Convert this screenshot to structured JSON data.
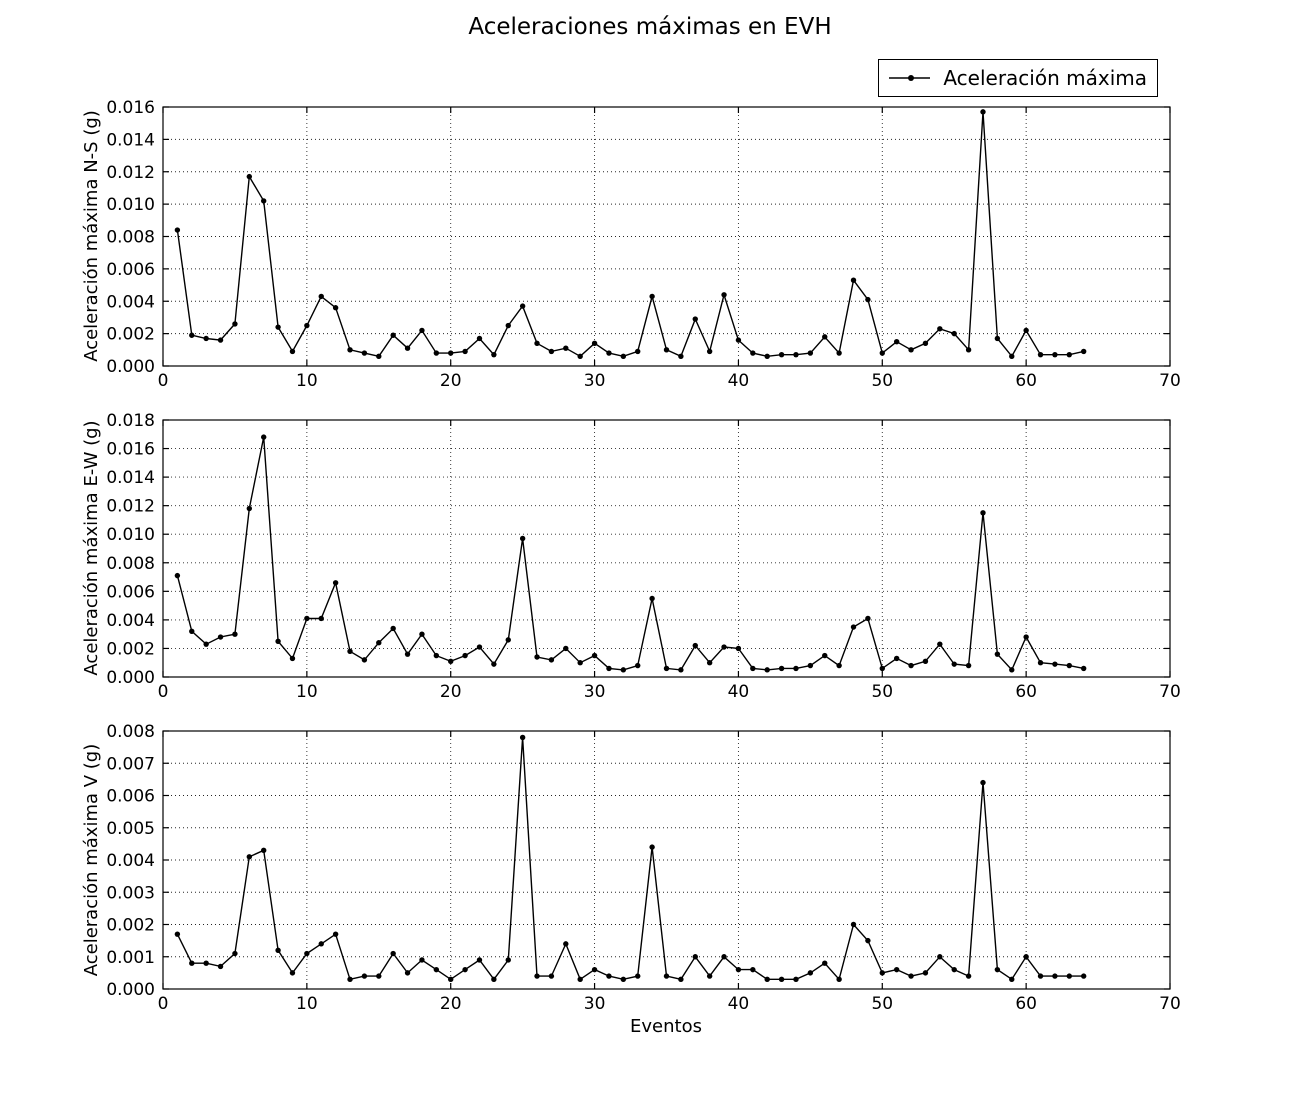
{
  "title": "Aceleraciones máximas en EVH",
  "xlabel": "Eventos",
  "legend": {
    "label": "Aceleración máxima",
    "position": "upper right",
    "marker": "point",
    "line_color": "#000000"
  },
  "colors": {
    "line": "#000000",
    "marker": "#000000",
    "background": "#ffffff",
    "grid": "#000000",
    "frame": "#000000"
  },
  "chart_data": [
    {
      "type": "line",
      "name": "N-S",
      "ylabel": "Aceleración máxima N-S (g)",
      "xlim": [
        0,
        70
      ],
      "ylim": [
        0,
        0.016
      ],
      "xticks": [
        0,
        10,
        20,
        30,
        40,
        50,
        60,
        70
      ],
      "ytick_step": 0.002,
      "ytick_decimals": 3,
      "grid": true,
      "x": [
        1,
        2,
        3,
        4,
        5,
        6,
        7,
        8,
        9,
        10,
        11,
        12,
        13,
        14,
        15,
        16,
        17,
        18,
        19,
        20,
        21,
        22,
        23,
        24,
        25,
        26,
        27,
        28,
        29,
        30,
        31,
        32,
        33,
        34,
        35,
        36,
        37,
        38,
        39,
        40,
        41,
        42,
        43,
        44,
        45,
        46,
        47,
        48,
        49,
        50,
        51,
        52,
        53,
        54,
        55,
        56,
        57,
        58,
        59,
        60,
        61,
        62,
        63,
        64
      ],
      "values": [
        0.0084,
        0.0019,
        0.0017,
        0.0016,
        0.0026,
        0.0117,
        0.0102,
        0.0024,
        0.0009,
        0.0025,
        0.0043,
        0.0036,
        0.001,
        0.0008,
        0.0006,
        0.0019,
        0.0011,
        0.0022,
        0.0008,
        0.0008,
        0.0009,
        0.0017,
        0.0007,
        0.0025,
        0.0037,
        0.0014,
        0.0009,
        0.0011,
        0.0006,
        0.0014,
        0.0008,
        0.0006,
        0.0009,
        0.0043,
        0.001,
        0.0006,
        0.0029,
        0.0009,
        0.0044,
        0.0016,
        0.0008,
        0.0006,
        0.0007,
        0.0007,
        0.0008,
        0.0018,
        0.0008,
        0.0053,
        0.0041,
        0.0008,
        0.0015,
        0.001,
        0.0014,
        0.0023,
        0.002,
        0.001,
        0.0157,
        0.0017,
        0.0006,
        0.0022,
        0.0007,
        0.0007,
        0.0007,
        0.0009
      ]
    },
    {
      "type": "line",
      "name": "E-W",
      "ylabel": "Aceleración máxima E-W (g)",
      "xlim": [
        0,
        70
      ],
      "ylim": [
        0,
        0.018
      ],
      "xticks": [
        0,
        10,
        20,
        30,
        40,
        50,
        60,
        70
      ],
      "ytick_step": 0.002,
      "ytick_decimals": 3,
      "grid": true,
      "x": [
        1,
        2,
        3,
        4,
        5,
        6,
        7,
        8,
        9,
        10,
        11,
        12,
        13,
        14,
        15,
        16,
        17,
        18,
        19,
        20,
        21,
        22,
        23,
        24,
        25,
        26,
        27,
        28,
        29,
        30,
        31,
        32,
        33,
        34,
        35,
        36,
        37,
        38,
        39,
        40,
        41,
        42,
        43,
        44,
        45,
        46,
        47,
        48,
        49,
        50,
        51,
        52,
        53,
        54,
        55,
        56,
        57,
        58,
        59,
        60,
        61,
        62,
        63,
        64
      ],
      "values": [
        0.0071,
        0.0032,
        0.0023,
        0.0028,
        0.003,
        0.0118,
        0.0168,
        0.0025,
        0.0013,
        0.0041,
        0.0041,
        0.0066,
        0.0018,
        0.0012,
        0.0024,
        0.0034,
        0.0016,
        0.003,
        0.0015,
        0.0011,
        0.0015,
        0.0021,
        0.0009,
        0.0026,
        0.0097,
        0.0014,
        0.0012,
        0.002,
        0.001,
        0.0015,
        0.0006,
        0.0005,
        0.0008,
        0.0055,
        0.0006,
        0.0005,
        0.0022,
        0.001,
        0.0021,
        0.002,
        0.0006,
        0.0005,
        0.0006,
        0.0006,
        0.0008,
        0.0015,
        0.0008,
        0.0035,
        0.0041,
        0.0006,
        0.0013,
        0.0008,
        0.0011,
        0.0023,
        0.0009,
        0.0008,
        0.0115,
        0.0016,
        0.0005,
        0.0028,
        0.001,
        0.0009,
        0.0008,
        0.0006
      ]
    },
    {
      "type": "line",
      "name": "V",
      "ylabel": "Aceleración máxima V (g)",
      "xlim": [
        0,
        70
      ],
      "ylim": [
        0,
        0.008
      ],
      "xticks": [
        0,
        10,
        20,
        30,
        40,
        50,
        60,
        70
      ],
      "ytick_step": 0.001,
      "ytick_decimals": 3,
      "grid": true,
      "x": [
        1,
        2,
        3,
        4,
        5,
        6,
        7,
        8,
        9,
        10,
        11,
        12,
        13,
        14,
        15,
        16,
        17,
        18,
        19,
        20,
        21,
        22,
        23,
        24,
        25,
        26,
        27,
        28,
        29,
        30,
        31,
        32,
        33,
        34,
        35,
        36,
        37,
        38,
        39,
        40,
        41,
        42,
        43,
        44,
        45,
        46,
        47,
        48,
        49,
        50,
        51,
        52,
        53,
        54,
        55,
        56,
        57,
        58,
        59,
        60,
        61,
        62,
        63,
        64
      ],
      "values": [
        0.0017,
        0.0008,
        0.0008,
        0.0007,
        0.0011,
        0.0041,
        0.0043,
        0.0012,
        0.0005,
        0.0011,
        0.0014,
        0.0017,
        0.0003,
        0.0004,
        0.0004,
        0.0011,
        0.0005,
        0.0009,
        0.0006,
        0.0003,
        0.0006,
        0.0009,
        0.0003,
        0.0009,
        0.0078,
        0.0004,
        0.0004,
        0.0014,
        0.0003,
        0.0006,
        0.0004,
        0.0003,
        0.0004,
        0.0044,
        0.0004,
        0.0003,
        0.001,
        0.0004,
        0.001,
        0.0006,
        0.0006,
        0.0003,
        0.0003,
        0.0003,
        0.0005,
        0.0008,
        0.0003,
        0.002,
        0.0015,
        0.0005,
        0.0006,
        0.0004,
        0.0005,
        0.001,
        0.0006,
        0.0004,
        0.0064,
        0.0006,
        0.0003,
        0.001,
        0.0004,
        0.0004,
        0.0004,
        0.0004
      ]
    }
  ]
}
